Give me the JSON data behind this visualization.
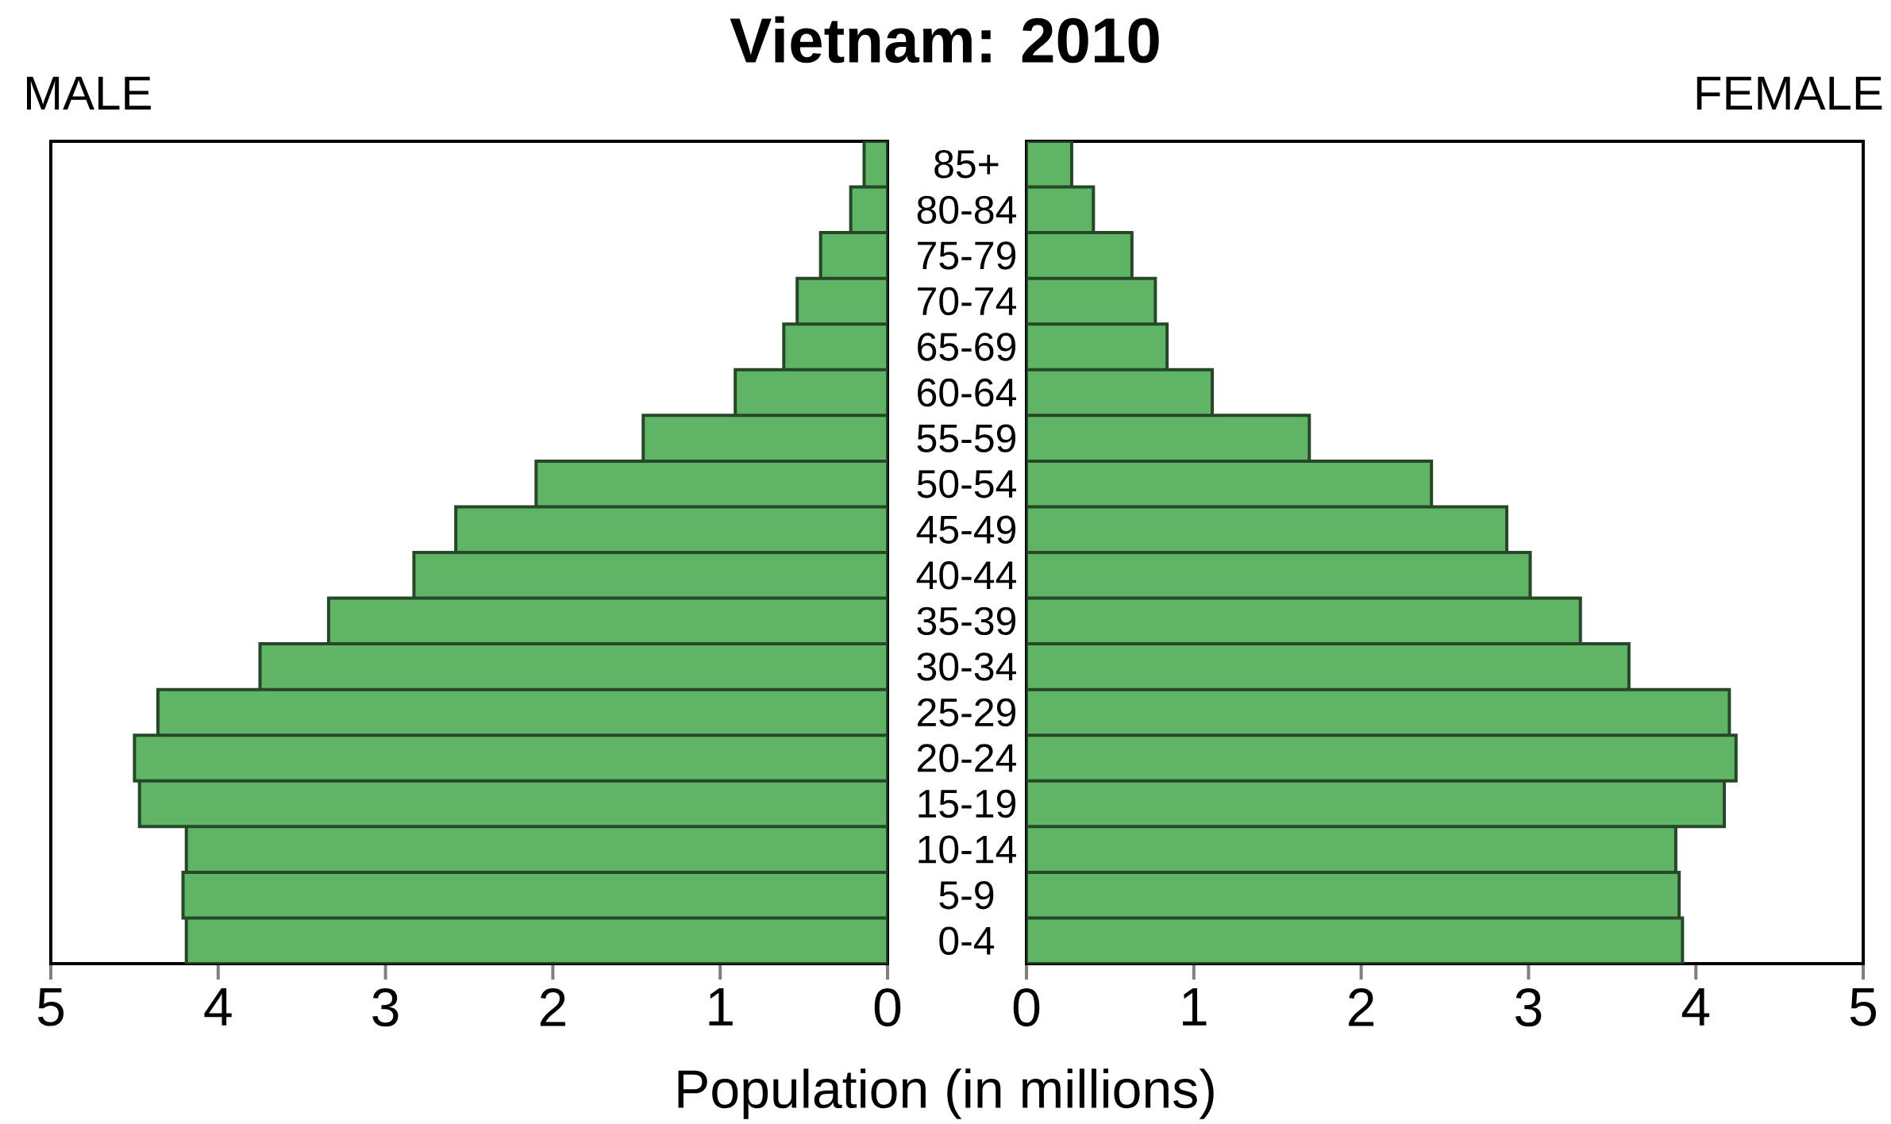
{
  "chart_data": [
    {
      "type": "bar",
      "orientation": "horizontal",
      "title": "Vietnam: 2010",
      "subtitle": "MALE",
      "xlabel": "Population (in millions)",
      "categories": [
        "85+",
        "80-84",
        "75-79",
        "70-74",
        "65-69",
        "60-64",
        "55-59",
        "50-54",
        "45-49",
        "40-44",
        "35-39",
        "30-34",
        "25-29",
        "20-24",
        "15-19",
        "10-14",
        "5-9",
        "0-4"
      ],
      "series": [
        {
          "color": "#5fb466",
          "values": [
            0.14,
            0.22,
            0.4,
            0.54,
            0.62,
            0.91,
            1.46,
            2.1,
            2.58,
            2.83,
            3.34,
            3.75,
            4.36,
            4.5,
            4.47,
            4.19,
            4.21,
            4.19
          ]
        }
      ],
      "xlim": [
        5,
        0
      ],
      "xticks": [
        5,
        4,
        3,
        2,
        1,
        0
      ],
      "grid": false
    },
    {
      "type": "bar",
      "orientation": "horizontal",
      "subtitle": "FEMALE",
      "series": [
        {
          "color": "#5fb466",
          "values": [
            0.27,
            0.4,
            0.63,
            0.77,
            0.84,
            1.11,
            1.69,
            2.42,
            2.87,
            3.01,
            3.31,
            3.6,
            4.2,
            4.24,
            4.17,
            3.88,
            3.9,
            3.92
          ]
        }
      ],
      "xlim": [
        0,
        5
      ],
      "xticks": [
        0,
        1,
        2,
        3,
        4,
        5
      ],
      "grid": false
    }
  ]
}
